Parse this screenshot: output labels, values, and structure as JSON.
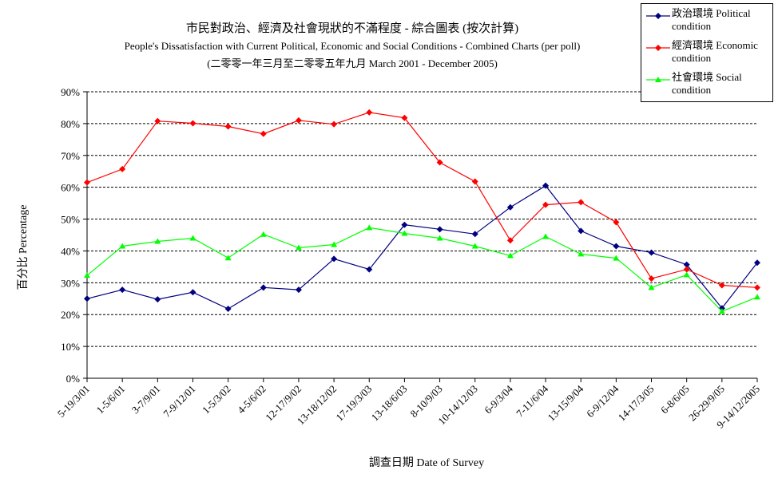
{
  "chart_data": {
    "type": "line",
    "title": "市民對政治、經濟及社會現狀的不滿程度 - 綜合圖表 (按次計算)",
    "subtitle": "People's Dissatisfaction with Current Political, Economic and Social Conditions - Combined Charts  (per poll)",
    "subtitle2": "(二零零一年三月至二零零五年九月 March 2001 - December 2005)",
    "xlabel": "調查日期 Date of Survey",
    "ylabel": "百分比 Percentage",
    "ylim": [
      0,
      90
    ],
    "yticks": [
      "0%",
      "10%",
      "20%",
      "30%",
      "40%",
      "50%",
      "60%",
      "70%",
      "80%",
      "90%"
    ],
    "grid": true,
    "legend_position": "top-right",
    "categories": [
      "5-19/3/01",
      "1-5/6/01",
      "3-7/9/01",
      "7-9/12/01",
      "1-5/3/02",
      "4-5/6/02",
      "12-17/9/02",
      "13-18/12/02",
      "17-19/3/03",
      "13-18/6/03",
      "8-10/9/03",
      "10-14/12/03",
      "6-9/3/04",
      "7-11/6/04",
      "13-15/9/04",
      "6-9/12/04",
      "14-17/3/05",
      "6-8/6/05",
      "26-29/9/05",
      "9-14/12/2005"
    ],
    "series": [
      {
        "name": "政治環境 Political condition",
        "color": "#000080",
        "marker": "diamond",
        "values": [
          25,
          27.8,
          24.8,
          27,
          21.8,
          28.5,
          27.8,
          37.5,
          34.2,
          48.2,
          46.8,
          45.3,
          53.7,
          60.5,
          46.3,
          41.5,
          39.5,
          35.7,
          22,
          36.3
        ]
      },
      {
        "name": "經濟環境 Economic condition",
        "color": "#ff0000",
        "marker": "diamond",
        "values": [
          61.5,
          65.7,
          80.8,
          80.1,
          79.1,
          76.8,
          81,
          79.8,
          83.5,
          81.8,
          67.8,
          61.8,
          43.3,
          54.5,
          55.3,
          49,
          31.3,
          34.2,
          29.2,
          28.5
        ]
      },
      {
        "name": "社會環境 Social condition",
        "color": "#00ff00",
        "marker": "triangle",
        "values": [
          32.3,
          41.5,
          43,
          44,
          37.8,
          45.2,
          41,
          42,
          47.3,
          45.5,
          44,
          41.5,
          38.5,
          44.5,
          39,
          37.7,
          28.5,
          32.5,
          21,
          25.5
        ]
      }
    ]
  }
}
